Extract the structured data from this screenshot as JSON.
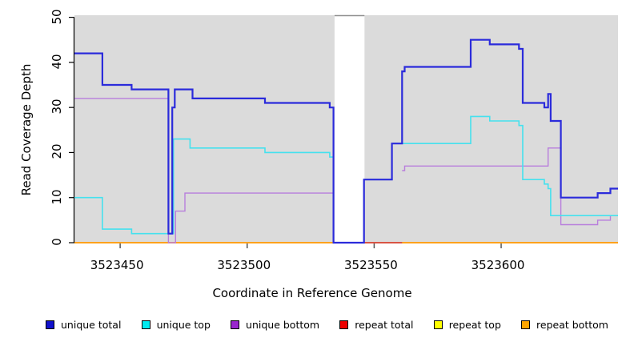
{
  "chart_data": {
    "type": "line",
    "subtype": "step-coverage",
    "title": "",
    "xlabel": "Coordinate in Reference Genome",
    "ylabel": "Read Coverage Depth",
    "xlim": [
      3523432,
      3523646
    ],
    "ylim": [
      0,
      50
    ],
    "grid": false,
    "legend_position": "bottom",
    "plot_bg": "#DBDBDB",
    "gap_band": {
      "x0": 3523534.4,
      "x1": 3523546.2,
      "color": "#FFFFFF",
      "top_line_color": "#909090"
    },
    "xticks": [
      "3523450",
      "3523500",
      "3523550",
      "3523600"
    ],
    "xtick_values": [
      3523450,
      3523500,
      3523550,
      3523600
    ],
    "yticks": [
      "0",
      "10",
      "20",
      "30",
      "40",
      "50"
    ],
    "ytick_values": [
      0,
      10,
      20,
      30,
      40,
      50
    ],
    "series": [
      {
        "name": "unique total",
        "color": "#2B2BDB",
        "legend_color": "#1111CC",
        "width": 2.2,
        "z": 6,
        "segments": [
          {
            "breaks": [
              [
                3523432,
                42
              ],
              [
                3523443,
                35
              ],
              [
                3523454.5,
                34
              ],
              [
                3523469,
                2
              ],
              [
                3523470.5,
                30
              ],
              [
                3523471.5,
                34
              ],
              [
                3523478.5,
                32
              ],
              [
                3523507,
                31
              ],
              [
                3523532.5,
                30
              ],
              [
                3523534,
                0
              ],
              [
                3523546,
                14
              ],
              [
                3523557,
                22
              ],
              [
                3523561,
                38
              ],
              [
                3523562,
                39
              ],
              [
                3523588,
                45
              ],
              [
                3523595.5,
                44
              ],
              [
                3523607,
                43
              ],
              [
                3523608.5,
                31
              ],
              [
                3523617,
                30
              ],
              [
                3523618.5,
                33
              ],
              [
                3523619.5,
                27
              ],
              [
                3523623.5,
                10
              ],
              [
                3523638,
                11
              ],
              [
                3523643,
                12
              ]
            ],
            "xend": 3523646
          }
        ]
      },
      {
        "name": "unique top",
        "color": "#45E1EE",
        "legend_color": "#00EBF0",
        "width": 1.6,
        "z": 5,
        "segments": [
          {
            "breaks": [
              [
                3523432,
                10
              ],
              [
                3523443,
                3
              ],
              [
                3523454.5,
                2
              ],
              [
                3523471,
                23
              ],
              [
                3523477.5,
                21
              ],
              [
                3523507,
                20
              ],
              [
                3523532.5,
                19
              ],
              [
                3523534,
                0
              ],
              [
                3523546,
                14
              ],
              [
                3523557,
                22
              ],
              [
                3523588,
                28
              ],
              [
                3523595.5,
                27
              ],
              [
                3523607,
                26
              ],
              [
                3523608.5,
                14
              ],
              [
                3523617,
                13
              ],
              [
                3523618.5,
                12
              ],
              [
                3523619.5,
                6
              ]
            ],
            "xend": 3523646
          }
        ]
      },
      {
        "name": "unique bottom",
        "color": "#B87EDC",
        "legend_color": "#9925CE",
        "width": 1.4,
        "z": 4,
        "segments": [
          {
            "breaks": [
              [
                3523432,
                32
              ],
              [
                3523469,
                0
              ],
              [
                3523471.8,
                7
              ],
              [
                3523475.5,
                11
              ]
            ],
            "xend": 3523534
          },
          {
            "breaks": [
              [
                3523561,
                16
              ],
              [
                3523562,
                17
              ],
              [
                3523618.5,
                21
              ],
              [
                3523623.5,
                4
              ],
              [
                3523638,
                5
              ],
              [
                3523643,
                6
              ]
            ],
            "xend": 3523646
          }
        ]
      },
      {
        "name": "repeat total",
        "color": "#CC3B52",
        "legend_color": "#EE0000",
        "width": 1.6,
        "z": 3,
        "segments": [
          {
            "breaks": [
              [
                3523546,
                0
              ]
            ],
            "xend": 3523561
          }
        ]
      },
      {
        "name": "repeat top",
        "color": "#FFFF00",
        "legend_color": "#FFFF00",
        "width": 1.6,
        "z": 1,
        "segments": [
          {
            "breaks": [
              [
                3523432,
                0
              ]
            ],
            "xend": 3523646
          }
        ]
      },
      {
        "name": "repeat bottom",
        "color": "#FFA21C",
        "legend_color": "#FFA500",
        "width": 2,
        "z": 2,
        "segments": [
          {
            "breaks": [
              [
                3523432,
                0
              ]
            ],
            "xend": 3523646
          }
        ]
      }
    ]
  }
}
